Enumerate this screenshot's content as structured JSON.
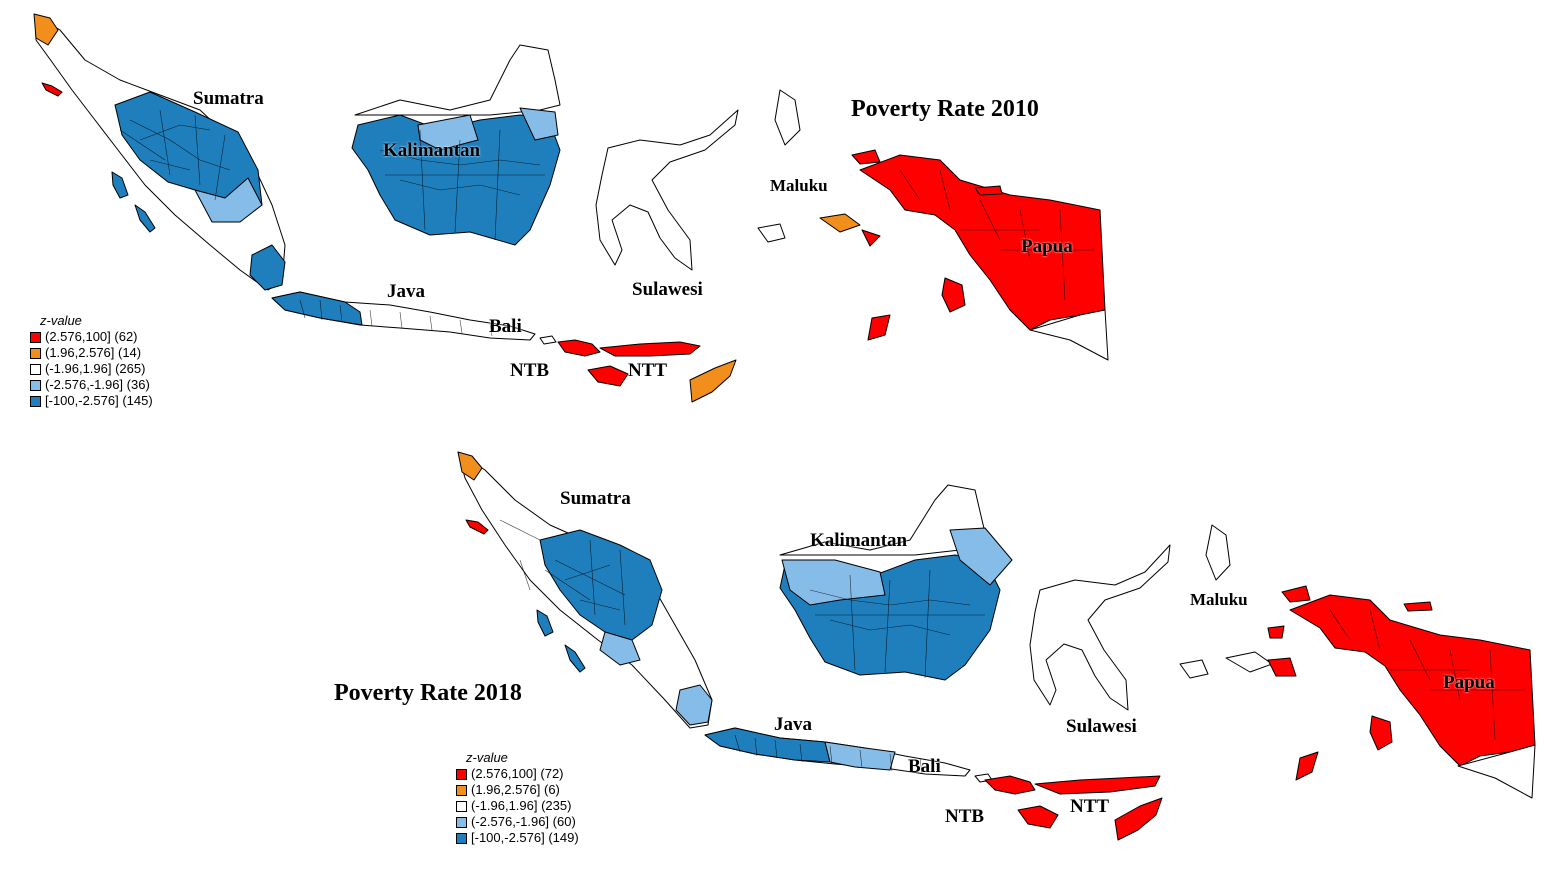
{
  "colors": {
    "high_hot": "#ff0000",
    "hot": "#f28e1c",
    "neutral": "#ffffff",
    "cold": "#86bce8",
    "low_cold": "#1f7fbd"
  },
  "maps": [
    {
      "title": "Poverty Rate 2010",
      "labels": {
        "sumatra": "Sumatra",
        "kalimantan": "Kalimantan",
        "java": "Java",
        "bali": "Bali",
        "sulawesi": "Sulawesi",
        "maluku": "Maluku",
        "papua": "Papua",
        "ntb": "NTB",
        "ntt": "NTT"
      },
      "legend": {
        "title": "z-value",
        "items": [
          {
            "label": "(2.576,100] (62)",
            "color": "#ff0000",
            "count": 62
          },
          {
            "label": "(1.96,2.576] (14)",
            "color": "#f28e1c",
            "count": 14
          },
          {
            "label": "(-1.96,1.96] (265)",
            "color": "#ffffff",
            "count": 265
          },
          {
            "label": "(-2.576,-1.96] (36)",
            "color": "#86bce8",
            "count": 36
          },
          {
            "label": "[-100,-2.576] (145)",
            "color": "#1f7fbd",
            "count": 145
          }
        ]
      }
    },
    {
      "title": "Poverty Rate 2018",
      "labels": {
        "sumatra": "Sumatra",
        "kalimantan": "Kalimantan",
        "java": "Java",
        "bali": "Bali",
        "sulawesi": "Sulawesi",
        "maluku": "Maluku",
        "papua": "Papua",
        "ntb": "NTB",
        "ntt": "NTT"
      },
      "legend": {
        "title": "z-value",
        "items": [
          {
            "label": "(2.576,100] (72)",
            "color": "#ff0000",
            "count": 72
          },
          {
            "label": "(1.96,2.576] (6)",
            "color": "#f28e1c",
            "count": 6
          },
          {
            "label": "(-1.96,1.96] (235)",
            "color": "#ffffff",
            "count": 235
          },
          {
            "label": "(-2.576,-1.96] (60)",
            "color": "#86bce8",
            "count": 60
          },
          {
            "label": "[-100,-2.576] (149)",
            "color": "#1f7fbd",
            "count": 149
          }
        ]
      }
    }
  ]
}
